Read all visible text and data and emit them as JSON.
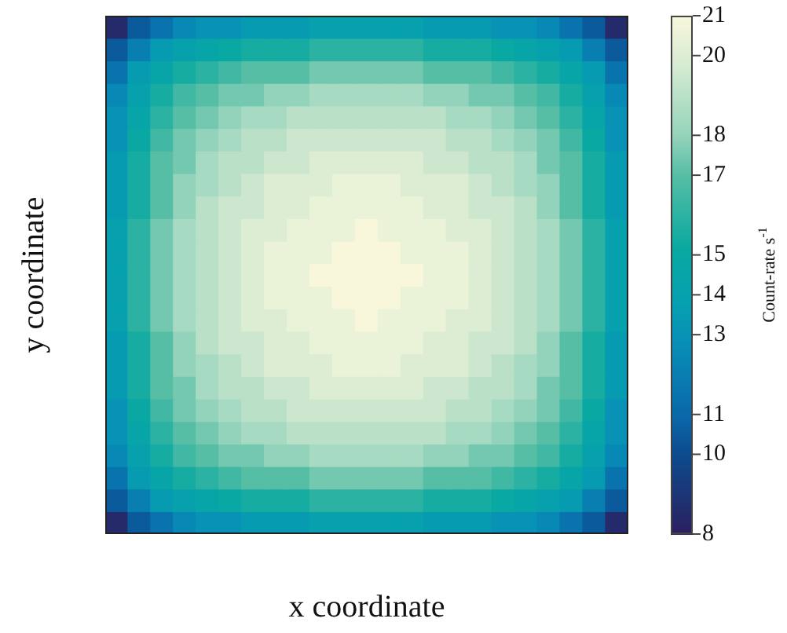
{
  "chart_data": {
    "type": "heatmap",
    "xlabel": "x coordinate",
    "ylabel": "y coordinate",
    "clabel": "Count-rate s$^{-1}$",
    "tick_labels": false,
    "categories": [
      null,
      null,
      null,
      null,
      null,
      null,
      null,
      null,
      null,
      null,
      null,
      null,
      null,
      null,
      null,
      null,
      null,
      null,
      null,
      null,
      null,
      null,
      null
    ],
    "y_categories": [
      null,
      null,
      null,
      null,
      null,
      null,
      null,
      null,
      null,
      null,
      null,
      null,
      null,
      null,
      null,
      null,
      null,
      null,
      null,
      null,
      null,
      null,
      null
    ],
    "clim": [
      8,
      21
    ],
    "cticks": [
      8,
      10,
      11,
      13,
      14,
      15,
      17,
      18,
      20,
      21
    ],
    "cells": [
      [
        8.5,
        10.5,
        11.5,
        12.5,
        13,
        13,
        13.5,
        13.5,
        13.5,
        14,
        14,
        14,
        14,
        14,
        13.5,
        13.5,
        13.5,
        13,
        13,
        12.5,
        11.5,
        10.5,
        8.5
      ],
      [
        10.5,
        12,
        13.5,
        14,
        14.5,
        15,
        15.5,
        15.5,
        15.5,
        16,
        16,
        16,
        16,
        16,
        15.5,
        15.5,
        15.5,
        15,
        14.5,
        14,
        13.5,
        12,
        10.5
      ],
      [
        11.5,
        13.5,
        14.5,
        15.5,
        16,
        16.5,
        17,
        17,
        17,
        17.5,
        17.5,
        17.5,
        17.5,
        17.5,
        17,
        17,
        17,
        16.5,
        16,
        15.5,
        14.5,
        13.5,
        11.5
      ],
      [
        12.5,
        14,
        15.5,
        16.5,
        17,
        17.5,
        17.5,
        18,
        18,
        18.5,
        18.5,
        18.5,
        18.5,
        18.5,
        18,
        18,
        17.5,
        17.5,
        17,
        16.5,
        15.5,
        14,
        12.5
      ],
      [
        13,
        14.5,
        16,
        17,
        17.5,
        18,
        18.5,
        18.5,
        19,
        19,
        19,
        19,
        19,
        19,
        19,
        18.5,
        18.5,
        18,
        17.5,
        17,
        16,
        14.5,
        13
      ],
      [
        13,
        15,
        16.5,
        17.5,
        18,
        18.5,
        19,
        19,
        19.5,
        19.5,
        19.5,
        19.5,
        19.5,
        19.5,
        19.5,
        19,
        19,
        18.5,
        18,
        17.5,
        16.5,
        15,
        13
      ],
      [
        13.5,
        15.5,
        17,
        17.5,
        18.5,
        19,
        19,
        19.5,
        19.5,
        20,
        20,
        20,
        20,
        20,
        19.5,
        19.5,
        19,
        19,
        18.5,
        17.5,
        17,
        15.5,
        13.5
      ],
      [
        13.5,
        15.5,
        17,
        18,
        18.5,
        19,
        19.5,
        20,
        20,
        20,
        20.5,
        20.5,
        20.5,
        20,
        20,
        20,
        19.5,
        19,
        18.5,
        18,
        17,
        15.5,
        13.5
      ],
      [
        13.5,
        15.5,
        17,
        18,
        19,
        19.5,
        19.5,
        20,
        20,
        20.5,
        20.5,
        20.5,
        20.5,
        20.5,
        20,
        20,
        19.5,
        19.5,
        19,
        18,
        17,
        15.5,
        13.5
      ],
      [
        14,
        16,
        17.5,
        18.5,
        19,
        19.5,
        20,
        20,
        20.5,
        20.5,
        20.5,
        21,
        20.5,
        20.5,
        20.5,
        20,
        20,
        19.5,
        19,
        18.5,
        17.5,
        16,
        14
      ],
      [
        14,
        16,
        17.5,
        18.5,
        19,
        19.5,
        20,
        20.5,
        20.5,
        20.5,
        21,
        21,
        21,
        20.5,
        20.5,
        20.5,
        20,
        19.5,
        19,
        18.5,
        17.5,
        16,
        14
      ],
      [
        14,
        16,
        17.5,
        18.5,
        19,
        19.5,
        20,
        20.5,
        20.5,
        21,
        21,
        21,
        21,
        21,
        20.5,
        20.5,
        20,
        19.5,
        19,
        18.5,
        17.5,
        16,
        14
      ],
      [
        14,
        16,
        17.5,
        18.5,
        19,
        19.5,
        20,
        20.5,
        20.5,
        20.5,
        21,
        21,
        21,
        20.5,
        20.5,
        20.5,
        20,
        19.5,
        19,
        18.5,
        17.5,
        16,
        14
      ],
      [
        14,
        16,
        17.5,
        18.5,
        19,
        19.5,
        20,
        20,
        20.5,
        20.5,
        20.5,
        21,
        20.5,
        20.5,
        20.5,
        20,
        20,
        19.5,
        19,
        18.5,
        17.5,
        16,
        14
      ],
      [
        13.5,
        15.5,
        17,
        18,
        19,
        19.5,
        19.5,
        20,
        20,
        20.5,
        20.5,
        20.5,
        20.5,
        20.5,
        20,
        20,
        19.5,
        19.5,
        19,
        18,
        17,
        15.5,
        13.5
      ],
      [
        13.5,
        15.5,
        17,
        18,
        18.5,
        19,
        19.5,
        20,
        20,
        20,
        20.5,
        20.5,
        20.5,
        20,
        20,
        20,
        19.5,
        19,
        18.5,
        18,
        17,
        15.5,
        13.5
      ],
      [
        13.5,
        15.5,
        17,
        17.5,
        18.5,
        19,
        19,
        19.5,
        19.5,
        20,
        20,
        20,
        20,
        20,
        19.5,
        19.5,
        19,
        19,
        18.5,
        17.5,
        17,
        15.5,
        13.5
      ],
      [
        13,
        15,
        16.5,
        17.5,
        18,
        18.5,
        19,
        19,
        19.5,
        19.5,
        19.5,
        19.5,
        19.5,
        19.5,
        19.5,
        19,
        19,
        18.5,
        18,
        17.5,
        16.5,
        15,
        13
      ],
      [
        13,
        14.5,
        16,
        17,
        17.5,
        18,
        18.5,
        18.5,
        19,
        19,
        19,
        19,
        19,
        19,
        19,
        18.5,
        18.5,
        18,
        17.5,
        17,
        16,
        14.5,
        13
      ],
      [
        12.5,
        14,
        15.5,
        16.5,
        17,
        17.5,
        17.5,
        18,
        18,
        18.5,
        18.5,
        18.5,
        18.5,
        18.5,
        18,
        18,
        17.5,
        17.5,
        17,
        16.5,
        15.5,
        14,
        12.5
      ],
      [
        11.5,
        13.5,
        14.5,
        15.5,
        16,
        16.5,
        17,
        17,
        17,
        17.5,
        17.5,
        17.5,
        17.5,
        17.5,
        17,
        17,
        17,
        16.5,
        16,
        15.5,
        14.5,
        13.5,
        11.5
      ],
      [
        10.5,
        12,
        13.5,
        14,
        14.5,
        15,
        15.5,
        15.5,
        15.5,
        16,
        16,
        16,
        16,
        16,
        15.5,
        15.5,
        15.5,
        15,
        14.5,
        14,
        13.5,
        12,
        10.5
      ],
      [
        8.5,
        10.5,
        11.5,
        12.5,
        13,
        13,
        13.5,
        13.5,
        13.5,
        14,
        14,
        14,
        14,
        14,
        13.5,
        13.5,
        13.5,
        13,
        13,
        12.5,
        11.5,
        10.5,
        8.5
      ]
    ]
  }
}
